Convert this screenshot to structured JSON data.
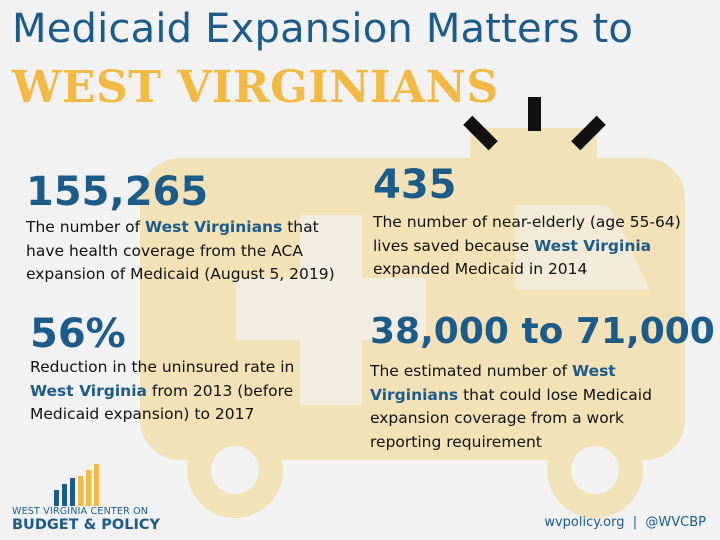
{
  "title": {
    "line1": "Medicaid Expansion Matters to",
    "line2": "WEST VIRGINIANS"
  },
  "stats": [
    {
      "number": "155,265",
      "desc_before": "The number of ",
      "desc_highlight": "West Virginians",
      "desc_after": " that have health coverage from the ACA expansion of Medicaid (August 5, 2019)"
    },
    {
      "number": "435",
      "desc_before": "The number of near-elderly (age 55-64) lives saved because ",
      "desc_highlight": "West Virginia",
      "desc_after": " expanded Medicaid in 2014"
    },
    {
      "number": "56%",
      "desc_before": "Reduction in the uninsured rate in ",
      "desc_highlight": "West Virginia",
      "desc_after": " from 2013 (before Medicaid expansion) to 2017"
    },
    {
      "number": "38,000 to 71,000",
      "desc_before": "The estimated number of ",
      "desc_highlight": "West Virginians",
      "desc_after": " that could lose Medicaid expansion coverage from a work reporting requirement"
    }
  ],
  "logo": {
    "line1": "WEST VIRGINIA CENTER ON",
    "line2": "BUDGET & POLICY"
  },
  "footer": {
    "text": "wvpolicy.org  |  @WVCBP"
  },
  "colors": {
    "primary_blue": "#1b5c8a",
    "accent_gold": "#f4b942",
    "ambulance_tan": "#f3e2b8",
    "background": "#f2f2f2"
  },
  "icons": [
    "ambulance-icon",
    "siren-light-icon",
    "medical-cross-icon",
    "bar-chart-logo-icon"
  ]
}
